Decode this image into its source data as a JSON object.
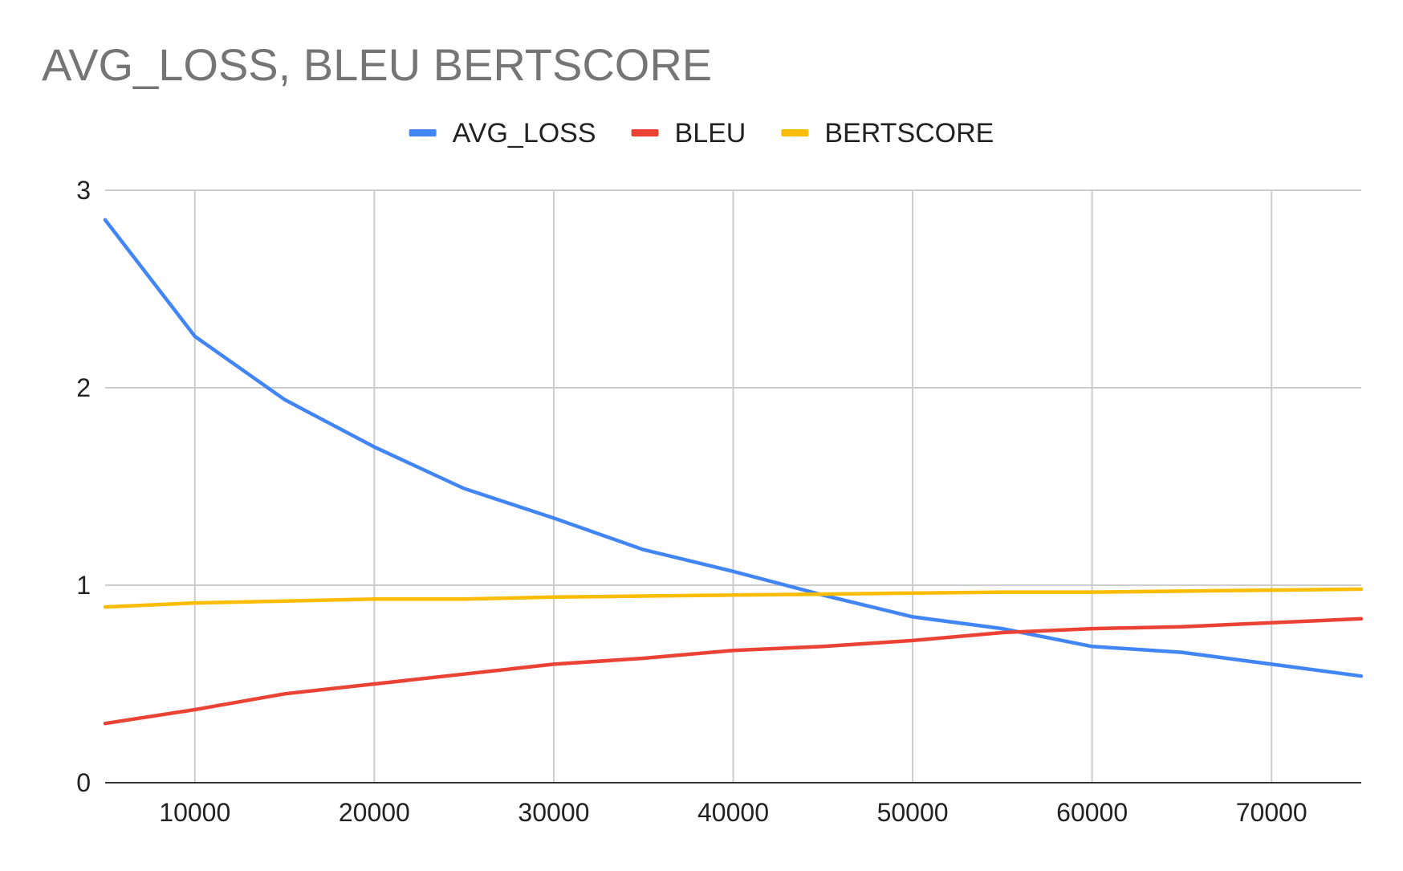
{
  "chart_data": {
    "type": "line",
    "title": "AVG_LOSS, BLEU BERTSCORE",
    "xlabel": "",
    "ylabel": "",
    "xlim": [
      5000,
      75000
    ],
    "ylim": [
      0,
      3
    ],
    "x_ticks": [
      10000,
      20000,
      30000,
      40000,
      50000,
      60000,
      70000
    ],
    "y_ticks": [
      0,
      1,
      2,
      3
    ],
    "grid": true,
    "legend_position": "top-center",
    "x": [
      5000,
      10000,
      15000,
      20000,
      25000,
      30000,
      35000,
      40000,
      45000,
      50000,
      55000,
      60000,
      65000,
      70000,
      75000
    ],
    "series": [
      {
        "name": "AVG_LOSS",
        "color": "#4285f4",
        "values": [
          2.85,
          2.26,
          1.94,
          1.7,
          1.49,
          1.34,
          1.18,
          1.07,
          0.95,
          0.84,
          0.78,
          0.69,
          0.66,
          0.6,
          0.54
        ]
      },
      {
        "name": "BLEU",
        "color": "#ea4335",
        "values": [
          0.3,
          0.37,
          0.45,
          0.5,
          0.55,
          0.6,
          0.63,
          0.67,
          0.69,
          0.72,
          0.76,
          0.78,
          0.79,
          0.81,
          0.83
        ]
      },
      {
        "name": "BERTSCORE",
        "color": "#fbbc04",
        "values": [
          0.89,
          0.91,
          0.92,
          0.93,
          0.93,
          0.94,
          0.945,
          0.95,
          0.955,
          0.96,
          0.965,
          0.965,
          0.97,
          0.975,
          0.98
        ]
      }
    ]
  }
}
